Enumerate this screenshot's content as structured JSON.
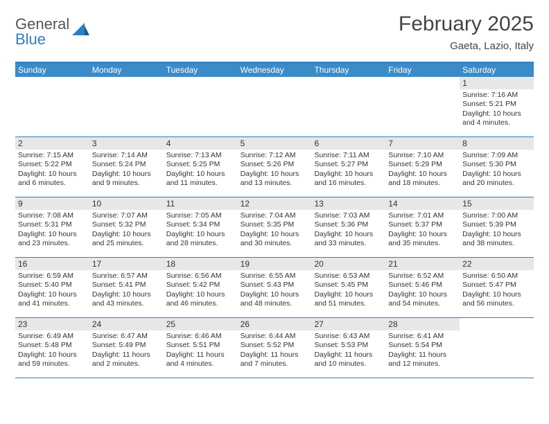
{
  "logo": {
    "text_gray": "General",
    "text_blue": "Blue"
  },
  "title": "February 2025",
  "location": "Gaeta, Lazio, Italy",
  "colors": {
    "header_bg": "#3b8bc9",
    "header_border": "#2f7ec2",
    "daynum_bg": "#e7e7e7",
    "text": "#333333",
    "logo_gray": "#555555",
    "logo_blue": "#2f7ec2",
    "page_bg": "#ffffff"
  },
  "day_names": [
    "Sunday",
    "Monday",
    "Tuesday",
    "Wednesday",
    "Thursday",
    "Friday",
    "Saturday"
  ],
  "weeks": [
    [
      {
        "empty": true
      },
      {
        "empty": true
      },
      {
        "empty": true
      },
      {
        "empty": true
      },
      {
        "empty": true
      },
      {
        "empty": true
      },
      {
        "d": "1",
        "sunrise": "7:16 AM",
        "sunset": "5:21 PM",
        "daylight": "10 hours and 4 minutes."
      }
    ],
    [
      {
        "d": "2",
        "sunrise": "7:15 AM",
        "sunset": "5:22 PM",
        "daylight": "10 hours and 6 minutes."
      },
      {
        "d": "3",
        "sunrise": "7:14 AM",
        "sunset": "5:24 PM",
        "daylight": "10 hours and 9 minutes."
      },
      {
        "d": "4",
        "sunrise": "7:13 AM",
        "sunset": "5:25 PM",
        "daylight": "10 hours and 11 minutes."
      },
      {
        "d": "5",
        "sunrise": "7:12 AM",
        "sunset": "5:26 PM",
        "daylight": "10 hours and 13 minutes."
      },
      {
        "d": "6",
        "sunrise": "7:11 AM",
        "sunset": "5:27 PM",
        "daylight": "10 hours and 16 minutes."
      },
      {
        "d": "7",
        "sunrise": "7:10 AM",
        "sunset": "5:29 PM",
        "daylight": "10 hours and 18 minutes."
      },
      {
        "d": "8",
        "sunrise": "7:09 AM",
        "sunset": "5:30 PM",
        "daylight": "10 hours and 20 minutes."
      }
    ],
    [
      {
        "d": "9",
        "sunrise": "7:08 AM",
        "sunset": "5:31 PM",
        "daylight": "10 hours and 23 minutes."
      },
      {
        "d": "10",
        "sunrise": "7:07 AM",
        "sunset": "5:32 PM",
        "daylight": "10 hours and 25 minutes."
      },
      {
        "d": "11",
        "sunrise": "7:05 AM",
        "sunset": "5:34 PM",
        "daylight": "10 hours and 28 minutes."
      },
      {
        "d": "12",
        "sunrise": "7:04 AM",
        "sunset": "5:35 PM",
        "daylight": "10 hours and 30 minutes."
      },
      {
        "d": "13",
        "sunrise": "7:03 AM",
        "sunset": "5:36 PM",
        "daylight": "10 hours and 33 minutes."
      },
      {
        "d": "14",
        "sunrise": "7:01 AM",
        "sunset": "5:37 PM",
        "daylight": "10 hours and 35 minutes."
      },
      {
        "d": "15",
        "sunrise": "7:00 AM",
        "sunset": "5:39 PM",
        "daylight": "10 hours and 38 minutes."
      }
    ],
    [
      {
        "d": "16",
        "sunrise": "6:59 AM",
        "sunset": "5:40 PM",
        "daylight": "10 hours and 41 minutes."
      },
      {
        "d": "17",
        "sunrise": "6:57 AM",
        "sunset": "5:41 PM",
        "daylight": "10 hours and 43 minutes."
      },
      {
        "d": "18",
        "sunrise": "6:56 AM",
        "sunset": "5:42 PM",
        "daylight": "10 hours and 46 minutes."
      },
      {
        "d": "19",
        "sunrise": "6:55 AM",
        "sunset": "5:43 PM",
        "daylight": "10 hours and 48 minutes."
      },
      {
        "d": "20",
        "sunrise": "6:53 AM",
        "sunset": "5:45 PM",
        "daylight": "10 hours and 51 minutes."
      },
      {
        "d": "21",
        "sunrise": "6:52 AM",
        "sunset": "5:46 PM",
        "daylight": "10 hours and 54 minutes."
      },
      {
        "d": "22",
        "sunrise": "6:50 AM",
        "sunset": "5:47 PM",
        "daylight": "10 hours and 56 minutes."
      }
    ],
    [
      {
        "d": "23",
        "sunrise": "6:49 AM",
        "sunset": "5:48 PM",
        "daylight": "10 hours and 59 minutes."
      },
      {
        "d": "24",
        "sunrise": "6:47 AM",
        "sunset": "5:49 PM",
        "daylight": "11 hours and 2 minutes."
      },
      {
        "d": "25",
        "sunrise": "6:46 AM",
        "sunset": "5:51 PM",
        "daylight": "11 hours and 4 minutes."
      },
      {
        "d": "26",
        "sunrise": "6:44 AM",
        "sunset": "5:52 PM",
        "daylight": "11 hours and 7 minutes."
      },
      {
        "d": "27",
        "sunrise": "6:43 AM",
        "sunset": "5:53 PM",
        "daylight": "11 hours and 10 minutes."
      },
      {
        "d": "28",
        "sunrise": "6:41 AM",
        "sunset": "5:54 PM",
        "daylight": "11 hours and 12 minutes."
      },
      {
        "empty": true
      }
    ]
  ],
  "labels": {
    "sunrise": "Sunrise: ",
    "sunset": "Sunset: ",
    "daylight": "Daylight: "
  }
}
